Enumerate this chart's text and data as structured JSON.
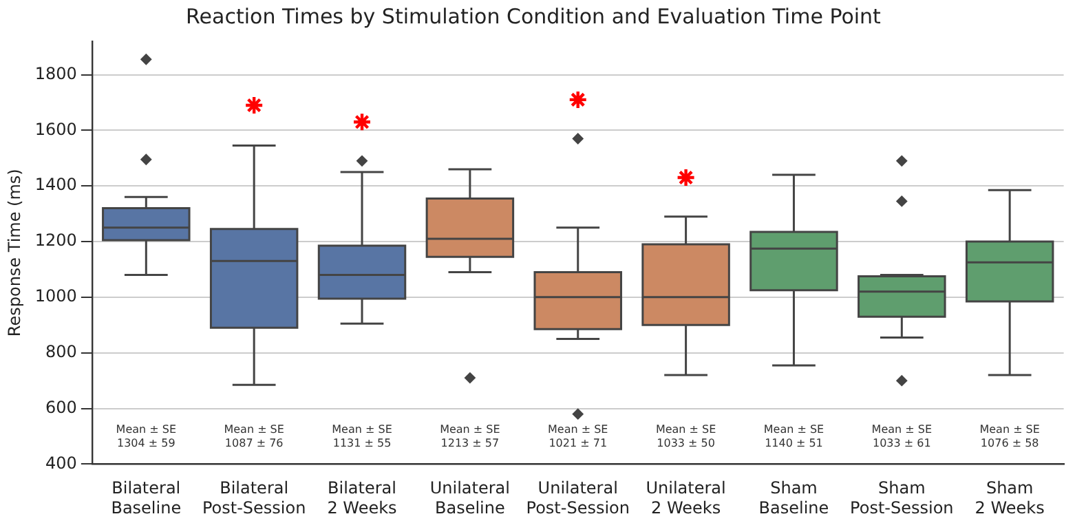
{
  "chart_data": {
    "type": "box",
    "title": "Reaction Times by Stimulation Condition and Evaluation Time Point",
    "ylabel": "Response Time (ms)",
    "categories": [
      "Bilateral Baseline",
      "Bilateral Post-Session",
      "Bilateral 2 Weeks",
      "Unilateral Baseline",
      "Unilateral Post-Session",
      "Unilateral 2 Weeks",
      "Sham Baseline",
      "Sham Post-Session",
      "Sham 2 Weeks"
    ],
    "colors": [
      "#5875a4",
      "#5875a4",
      "#5875a4",
      "#cc8963",
      "#cc8963",
      "#cc8963",
      "#5f9e6e",
      "#5f9e6e",
      "#5f9e6e"
    ],
    "boxes": [
      {
        "low": 1080,
        "q1": 1205,
        "median": 1250,
        "q3": 1320,
        "high": 1360,
        "outliers": [
          1855,
          1495
        ]
      },
      {
        "low": 685,
        "q1": 890,
        "median": 1130,
        "q3": 1245,
        "high": 1545
      },
      {
        "low": 905,
        "q1": 995,
        "median": 1080,
        "q3": 1185,
        "high": 1450,
        "outliers": [
          1490
        ]
      },
      {
        "low": 1090,
        "q1": 1145,
        "median": 1210,
        "q3": 1355,
        "high": 1460,
        "outliers": [
          710
        ]
      },
      {
        "low": 850,
        "q1": 885,
        "median": 1000,
        "q3": 1090,
        "high": 1250,
        "outliers": [
          1570,
          580
        ]
      },
      {
        "low": 720,
        "q1": 900,
        "median": 1000,
        "q3": 1190,
        "high": 1290
      },
      {
        "low": 755,
        "q1": 1025,
        "median": 1175,
        "q3": 1235,
        "high": 1440
      },
      {
        "low": 855,
        "q1": 930,
        "median": 1020,
        "q3": 1075,
        "high": 1080,
        "outliers": [
          1490,
          1345,
          700
        ]
      },
      {
        "low": 720,
        "q1": 985,
        "median": 1125,
        "q3": 1200,
        "high": 1385
      }
    ],
    "ylim": [
      400,
      1920
    ],
    "yticks": [
      400,
      600,
      800,
      1000,
      1200,
      1400,
      1600,
      1800
    ],
    "grid": "y",
    "legend": false,
    "value_labels": [
      "Mean ± SE\n1304 ± 59",
      "Mean ± SE\n1087 ± 76",
      "Mean ± SE\n1131 ± 55",
      "Mean ± SE\n1213 ± 57",
      "Mean ± SE\n1021 ± 71",
      "Mean ± SE\n1033 ± 50",
      "Mean ± SE\n1140 ± 51",
      "Mean ± SE\n1033 ± 61",
      "Mean ± SE\n1076 ± 58"
    ],
    "series": [
      {
        "type": "scatter",
        "marker": "cross",
        "color": "#ff0000",
        "x": [
          "Bilateral Post-Session",
          "Bilateral 2 Weeks",
          "Unilateral Post-Session",
          "Unilateral 2 Weeks"
        ],
        "values": [
          1690,
          1630,
          1710,
          1430
        ]
      }
    ]
  }
}
